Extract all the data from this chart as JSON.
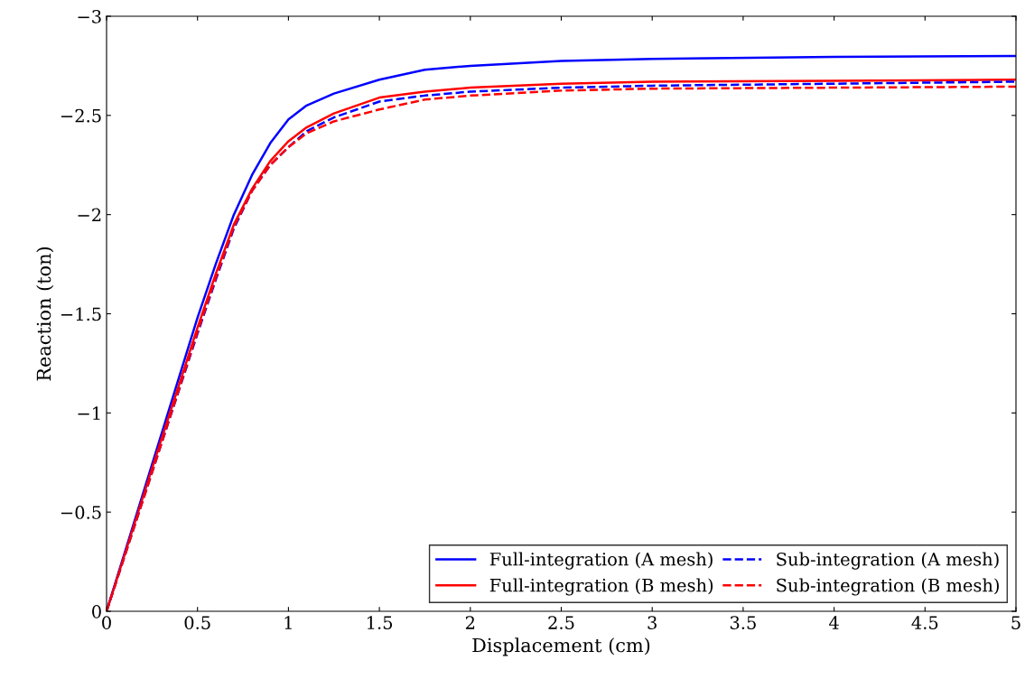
{
  "chart_data": {
    "type": "line",
    "xlabel": "Displacement (cm)",
    "ylabel": "Reaction (ton)",
    "xlim": [
      0,
      5
    ],
    "ylim": [
      0,
      -3
    ],
    "xticks": [
      0,
      0.5,
      1,
      1.5,
      2,
      2.5,
      3,
      3.5,
      4,
      4.5,
      5
    ],
    "yticks": [
      0,
      {
        "value": -0.5,
        "label": "−0.5"
      },
      {
        "value": -1,
        "label": "−1"
      },
      {
        "value": -1.5,
        "label": "−1.5"
      },
      {
        "value": -2,
        "label": "−2"
      },
      {
        "value": -2.5,
        "label": "−2.5"
      },
      {
        "value": -3,
        "label": "−3"
      }
    ],
    "grid": false,
    "legend": "bottom right",
    "marker": "none",
    "x": [
      0,
      0.25,
      0.5,
      0.6,
      0.7,
      0.8,
      0.9,
      1.0,
      1.1,
      1.25,
      1.5,
      1.75,
      2,
      2.5,
      3,
      4,
      5
    ],
    "series": [
      {
        "name": "Full-integration (A mesh)",
        "color": "#0000ff",
        "line_style": "solid",
        "values": [
          0,
          -0.74,
          -1.48,
          -1.75,
          -2.0,
          -2.2,
          -2.36,
          -2.48,
          -2.55,
          -2.61,
          -2.68,
          -2.73,
          -2.75,
          -2.775,
          -2.785,
          -2.795,
          -2.8
        ]
      },
      {
        "name": "Full-integration (B mesh)",
        "color": "#ff0000",
        "line_style": "solid",
        "values": [
          0,
          -0.72,
          -1.43,
          -1.7,
          -1.95,
          -2.13,
          -2.27,
          -2.37,
          -2.44,
          -2.51,
          -2.59,
          -2.62,
          -2.64,
          -2.66,
          -2.67,
          -2.675,
          -2.68
        ]
      },
      {
        "name": "Sub-integration (A mesh)",
        "color": "#0000ff",
        "line_style": "dashed",
        "values": [
          0,
          -0.7,
          -1.4,
          -1.67,
          -1.93,
          -2.12,
          -2.25,
          -2.34,
          -2.42,
          -2.49,
          -2.57,
          -2.6,
          -2.62,
          -2.64,
          -2.65,
          -2.66,
          -2.67
        ]
      },
      {
        "name": "Sub-integration (B mesh)",
        "color": "#ff0000",
        "line_style": "dashed",
        "values": [
          0,
          -0.7,
          -1.41,
          -1.68,
          -1.94,
          -2.12,
          -2.25,
          -2.34,
          -2.41,
          -2.47,
          -2.53,
          -2.58,
          -2.6,
          -2.625,
          -2.635,
          -2.64,
          -2.645
        ]
      }
    ]
  }
}
